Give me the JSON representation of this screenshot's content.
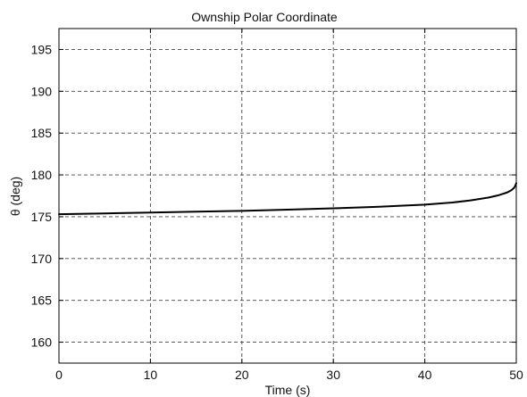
{
  "chart_data": {
    "type": "line",
    "title": "Ownship Polar Coordinate",
    "xlabel": "Time (s)",
    "ylabel": "θ (deg)",
    "xlim": [
      0,
      50
    ],
    "ylim": [
      157.5,
      197.5
    ],
    "xticks": [
      0,
      10,
      20,
      30,
      40,
      50
    ],
    "yticks": [
      160,
      165,
      170,
      175,
      180,
      185,
      190,
      195
    ],
    "grid": true,
    "series": [
      {
        "color": "#000000",
        "x": [
          0,
          5,
          10,
          15,
          20,
          25,
          30,
          35,
          40,
          43,
          45,
          47,
          48,
          49,
          49.5,
          49.8,
          50
        ],
        "y": [
          175.3,
          175.4,
          175.5,
          175.6,
          175.7,
          175.85,
          176.0,
          176.2,
          176.45,
          176.7,
          176.95,
          177.3,
          177.55,
          177.9,
          178.2,
          178.5,
          179.0
        ]
      }
    ]
  }
}
